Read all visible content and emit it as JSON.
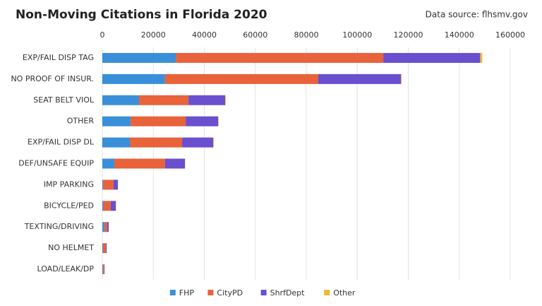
{
  "chart_data": {
    "type": "stacked-bar-horizontal",
    "title": "Non-Moving Citations in Florida 2020",
    "source": "Data source: flhsmv.gov",
    "categories": [
      "EXP/FAIL DISP TAG",
      "NO PROOF OF INSUR.",
      "SEAT BELT VIOL",
      "OTHER",
      "EXP/FAIL DISP DL",
      "DEF/UNSAFE EQUIP",
      "IMP PARKING",
      "BICYCLE/PED",
      "TEXTING/DRIVING",
      "NO HELMET",
      "LOAD/LEAK/DP"
    ],
    "series": [
      {
        "name": "FHP",
        "color": "#3a8fd9",
        "values": [
          28800,
          24600,
          14400,
          11100,
          10800,
          4700,
          300,
          400,
          800,
          300,
          300
        ]
      },
      {
        "name": "CityPD",
        "color": "#e8623a",
        "values": [
          81400,
          60100,
          19400,
          21600,
          20500,
          19900,
          4100,
          2900,
          1100,
          1100,
          500
        ]
      },
      {
        "name": "ShrfDept",
        "color": "#6a4fcf",
        "values": [
          38000,
          32400,
          14400,
          12700,
          12200,
          7800,
          1700,
          2000,
          600,
          300,
          100
        ]
      },
      {
        "name": "Other",
        "color": "#f2b630",
        "values": [
          800,
          300,
          200,
          200,
          200,
          100,
          50,
          50,
          50,
          50,
          50
        ]
      }
    ],
    "xlim": [
      0,
      160000
    ],
    "xticks": [
      0,
      20000,
      40000,
      60000,
      80000,
      100000,
      120000,
      140000,
      160000
    ],
    "grid": true,
    "legend": "bottom"
  }
}
